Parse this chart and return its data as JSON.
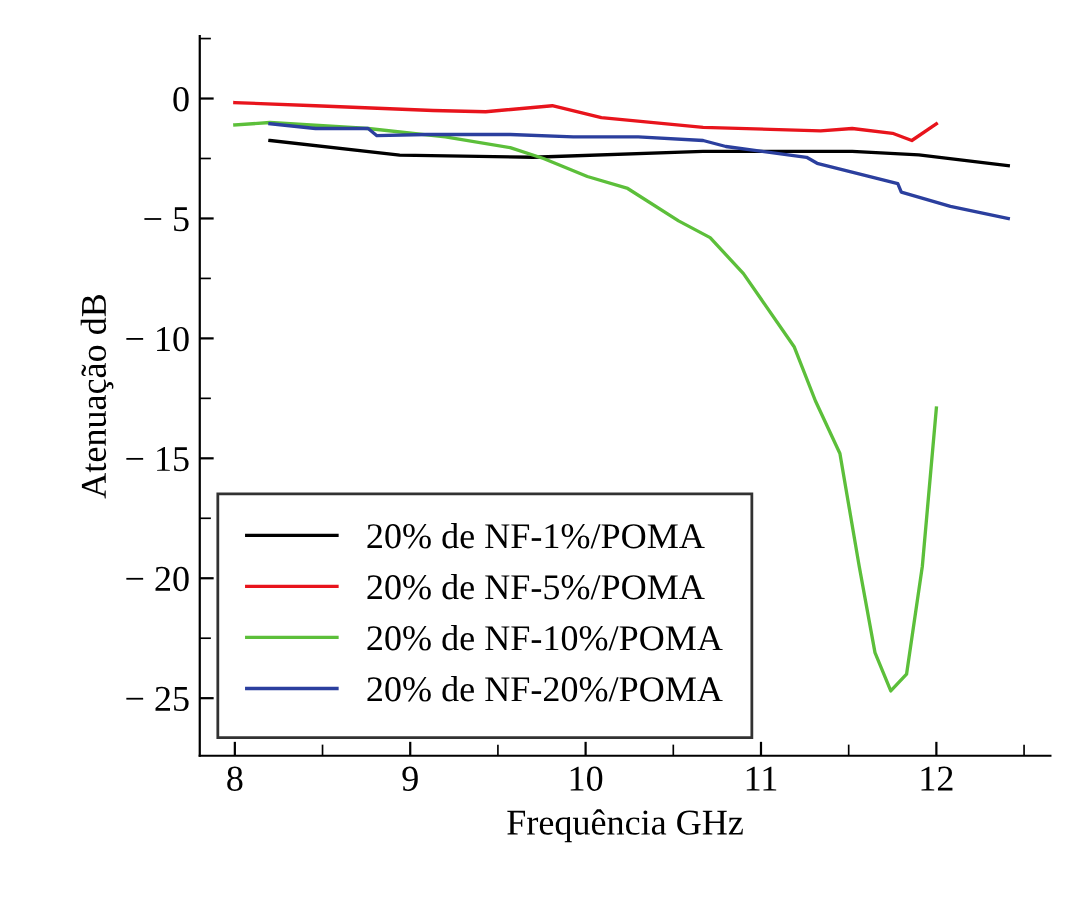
{
  "chart_data": {
    "type": "line",
    "xlabel": "Frequência GHz",
    "ylabel": "Atenuação dB",
    "xlim": [
      7.8,
      12.65
    ],
    "ylim": [
      -27.4,
      2.6
    ],
    "xticks": [
      8,
      9,
      10,
      11,
      12
    ],
    "yticks": [
      0,
      -5,
      -10,
      -15,
      -20,
      -25
    ],
    "grid": false,
    "legend": "bottom left",
    "line_style": "solid",
    "marker": "none",
    "series": [
      {
        "name": "20% de NF-1%/POMA",
        "color": "#000000",
        "x": [
          8.2,
          8.94,
          9.7,
          10.67,
          11.52,
          11.9,
          12.41
        ],
        "values": [
          -1.75,
          -2.36,
          -2.45,
          -2.2,
          -2.2,
          -2.35,
          -2.8
        ]
      },
      {
        "name": "20% de NF-5%/POMA",
        "color": "#e8141c",
        "x": [
          8.0,
          8.46,
          9.13,
          9.43,
          9.81,
          10.09,
          10.67,
          11.34,
          11.52,
          11.75,
          11.86,
          12.0
        ],
        "values": [
          -0.17,
          -0.3,
          -0.5,
          -0.55,
          -0.3,
          -0.8,
          -1.2,
          -1.35,
          -1.25,
          -1.45,
          -1.75,
          -1.05
        ]
      },
      {
        "name": "20% de NF-10%/POMA",
        "color": "#5cbf3a",
        "x": [
          8.0,
          8.2,
          8.76,
          9.2,
          9.57,
          9.76,
          10.01,
          10.24,
          10.53,
          10.71,
          10.9,
          11.19,
          11.31,
          11.45,
          11.56,
          11.65,
          11.74,
          11.83,
          11.92,
          12.0
        ],
        "values": [
          -1.1,
          -1.0,
          -1.25,
          -1.6,
          -2.05,
          -2.5,
          -3.25,
          -3.75,
          -5.1,
          -5.8,
          -7.3,
          -10.36,
          -12.6,
          -14.8,
          -19.5,
          -23.1,
          -24.7,
          -24.0,
          -19.5,
          -12.9
        ]
      },
      {
        "name": "20% de NF-20%/POMA",
        "color": "#2b3f9e",
        "x": [
          8.2,
          8.46,
          8.76,
          8.81,
          9.09,
          9.57,
          9.93,
          10.3,
          10.67,
          10.8,
          11.26,
          11.32,
          11.78,
          11.8,
          12.08,
          12.41
        ],
        "values": [
          -1.05,
          -1.25,
          -1.25,
          -1.55,
          -1.5,
          -1.5,
          -1.6,
          -1.6,
          -1.75,
          -2.0,
          -2.45,
          -2.7,
          -3.55,
          -3.9,
          -4.5,
          -5.0
        ]
      }
    ]
  }
}
